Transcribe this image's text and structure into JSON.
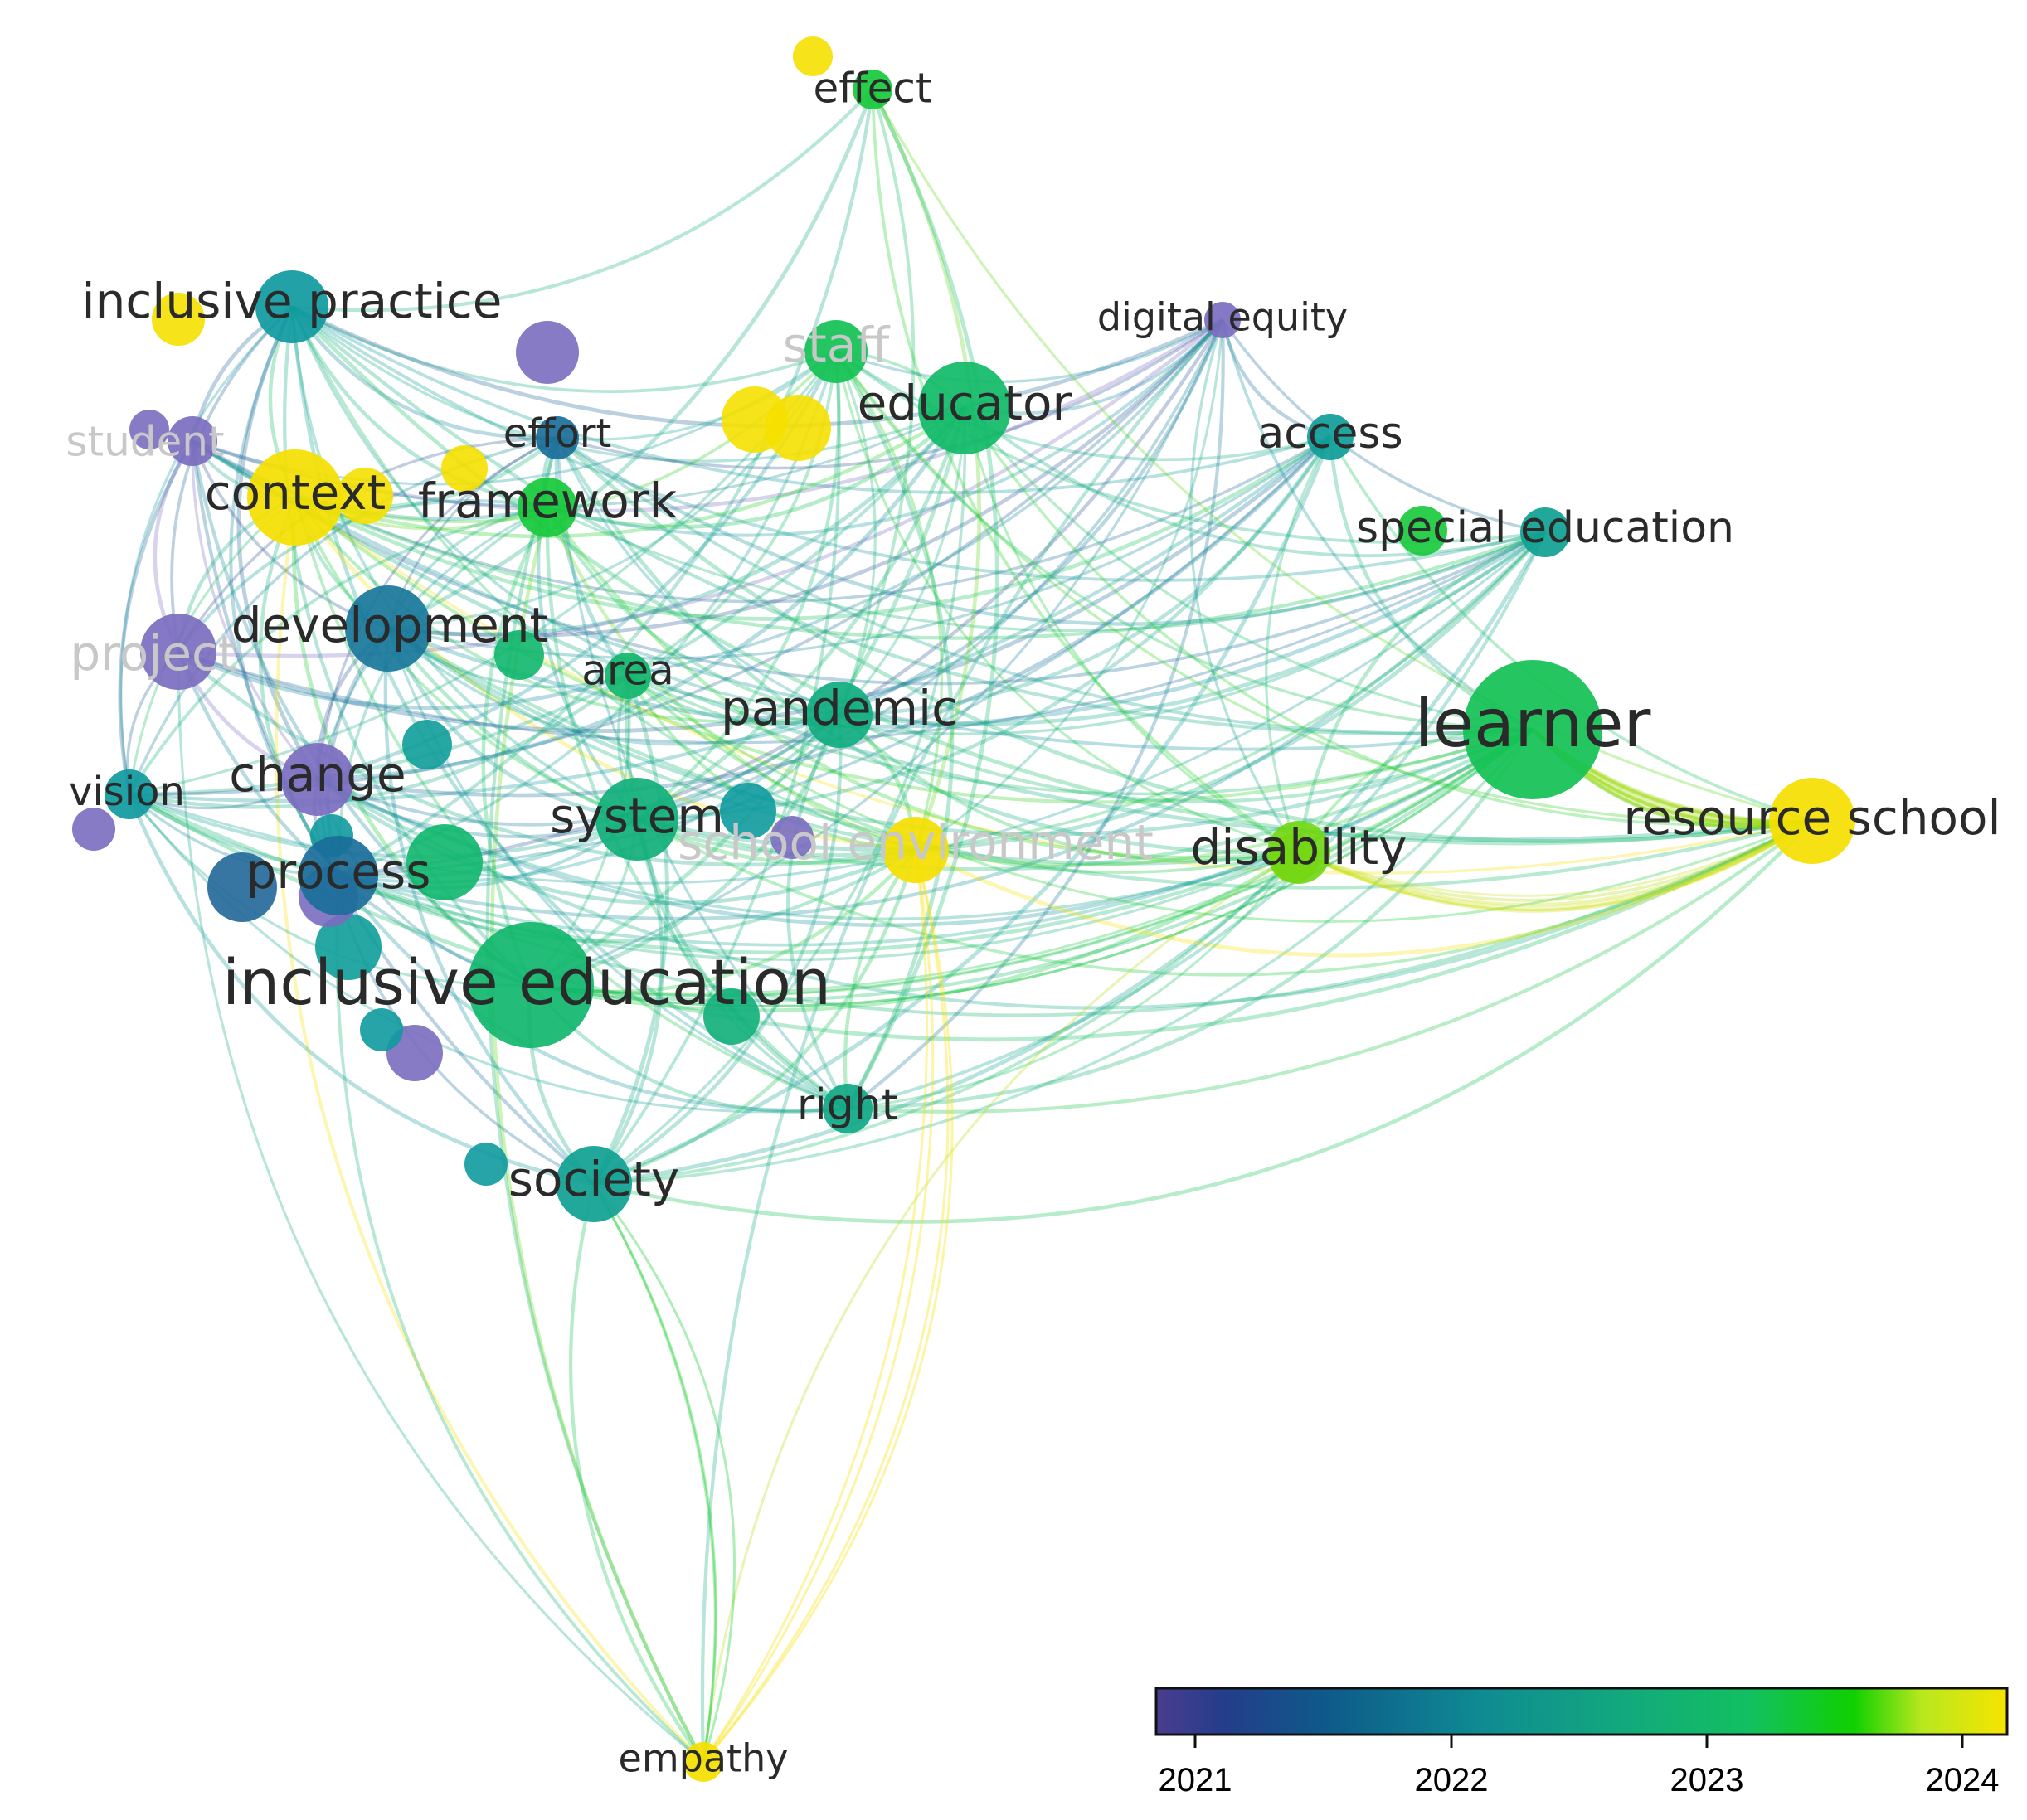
{
  "network": {
    "nodes": [
      {
        "id": "inclusive-practice",
        "label": "inclusive practice",
        "year": 2022.0,
        "size": "m"
      },
      {
        "id": "student",
        "label": "student",
        "year": 2020.8,
        "size": "s",
        "faded": true
      },
      {
        "id": "context",
        "label": "context",
        "year": 2024.0,
        "size": "l"
      },
      {
        "id": "effort",
        "label": "effort",
        "year": 2021.5,
        "size": "s"
      },
      {
        "id": "framework",
        "label": "framework",
        "year": 2023.3,
        "size": "m"
      },
      {
        "id": "development",
        "label": "development",
        "year": 2021.6,
        "size": "l"
      },
      {
        "id": "project",
        "label": "project",
        "year": 2020.8,
        "size": "m",
        "faded": true
      },
      {
        "id": "vision",
        "label": "vision",
        "year": 2022.0,
        "size": "s"
      },
      {
        "id": "change",
        "label": "change",
        "year": 2020.8,
        "size": "m"
      },
      {
        "id": "process",
        "label": "process",
        "year": 2021.5,
        "size": "m"
      },
      {
        "id": "inclusive-education",
        "label": "inclusive education",
        "year": 2022.8,
        "size": "xl"
      },
      {
        "id": "society",
        "label": "society",
        "year": 2022.2,
        "size": "m"
      },
      {
        "id": "area",
        "label": "area",
        "year": 2022.8,
        "size": "s"
      },
      {
        "id": "system",
        "label": "system",
        "year": 2022.6,
        "size": "l"
      },
      {
        "id": "school-environment",
        "label": "school environment",
        "year": 2024.0,
        "size": "m",
        "faded": true
      },
      {
        "id": "pandemic",
        "label": "pandemic",
        "year": 2022.5,
        "size": "m"
      },
      {
        "id": "right",
        "label": "right",
        "year": 2022.4,
        "size": "s"
      },
      {
        "id": "effect",
        "label": "effect",
        "year": 2023.3,
        "size": "s"
      },
      {
        "id": "educator",
        "label": "educator",
        "year": 2022.9,
        "size": "l"
      },
      {
        "id": "staff",
        "label": "staff",
        "year": 2023.1,
        "size": "m",
        "faded": true
      },
      {
        "id": "digital-equity",
        "label": "digital equity",
        "year": 2020.8,
        "size": "s"
      },
      {
        "id": "access",
        "label": "access",
        "year": 2022.1,
        "size": "s"
      },
      {
        "id": "special-education",
        "label": "special education",
        "year": 2022.2,
        "size": "s"
      },
      {
        "id": "learner",
        "label": "learner",
        "year": 2023.1,
        "size": "xl"
      },
      {
        "id": "disability",
        "label": "disability",
        "year": 2023.7,
        "size": "m"
      },
      {
        "id": "resource-school",
        "label": "resource school",
        "year": 2024.0,
        "size": "l"
      },
      {
        "id": "empathy",
        "label": "empathy",
        "year": 2024.0,
        "size": "s"
      }
    ]
  },
  "legend": {
    "ticks": [
      "2021",
      "2022",
      "2023",
      "2024"
    ]
  },
  "colors": {
    "y2020_8": "#7b6dbf",
    "y2021": "#3b4d96",
    "y2021_5": "#1a6e9a",
    "y2022": "#0f9a9f",
    "y2023": "#10bd61",
    "y2023_5": "#1ad120",
    "y2024": "#f5e000"
  }
}
